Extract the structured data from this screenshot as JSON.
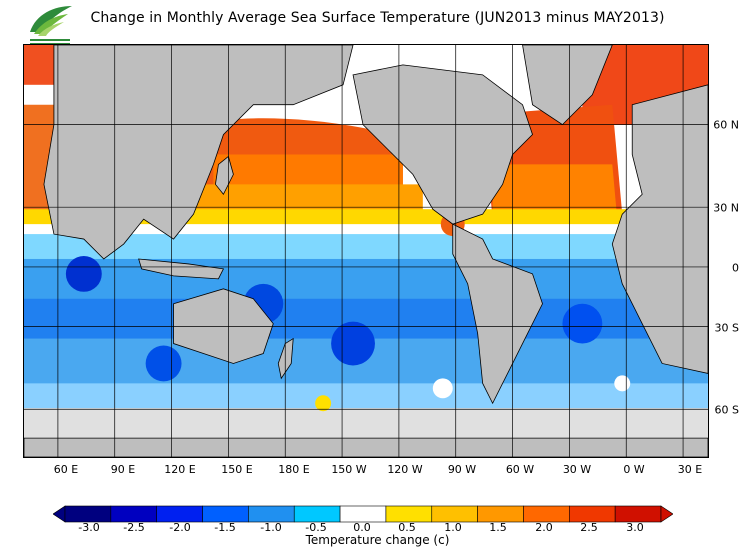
{
  "title": "Change in Monthly Average Sea Surface Temperature (JUN2013 minus MAY2013)",
  "map": {
    "land_color": "#bebebe",
    "ice_color": "#e0e0e0",
    "longitude_labels": [
      "60 E",
      "90 E",
      "120 E",
      "150 E",
      "180 E",
      "150 W",
      "120 W",
      "90 W",
      "60 W",
      "30 W",
      "0 W",
      "30 E"
    ],
    "latitude_labels": [
      "60 N",
      "30 N",
      "0",
      "30 S",
      "60 S"
    ]
  },
  "colorbar": {
    "title": "Temperature change  (c)",
    "tick_labels": [
      "-3.0",
      "-2.5",
      "-2.0",
      "-1.5",
      "-1.0",
      "-0.5",
      "0.0",
      "0.5",
      "1.0",
      "1.5",
      "2.0",
      "2.5",
      "3.0"
    ],
    "colors": [
      "#00007f",
      "#0000c0",
      "#0020f0",
      "#0060ff",
      "#2090f0",
      "#00c8ff",
      "#ffffff",
      "#ffe000",
      "#ffc000",
      "#ff9800",
      "#ff6800",
      "#f03800",
      "#d01000"
    ]
  }
}
